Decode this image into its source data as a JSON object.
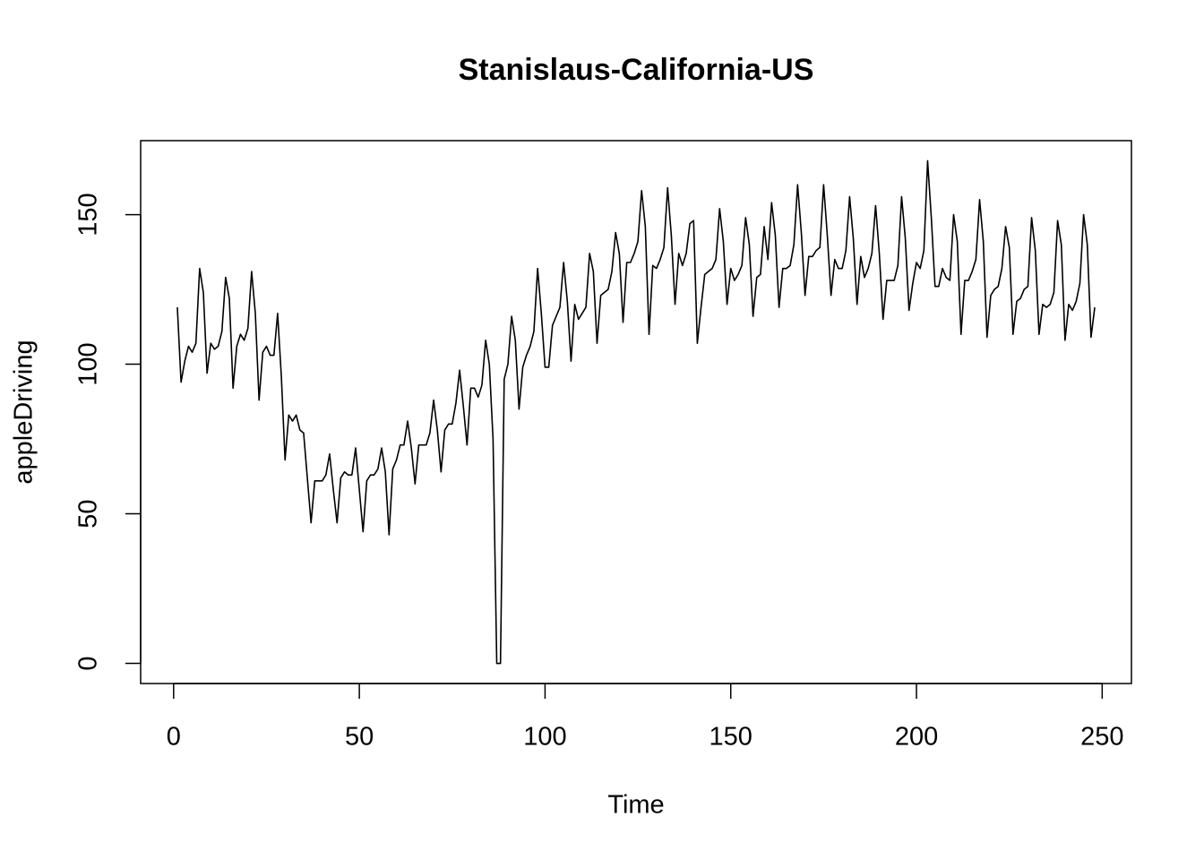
{
  "chart_data": {
    "type": "line",
    "title": "Stanislaus-California-US",
    "x_label": "Time",
    "y_label": "appleDriving",
    "xlim": [
      -8.88,
      257.88
    ],
    "ylim": [
      -6.72,
      174.72
    ],
    "xticks": [
      0,
      50,
      100,
      150,
      200,
      250
    ],
    "yticks": [
      0,
      50,
      100,
      150
    ],
    "series": [
      {
        "name": "appleDriving",
        "color": "#000000",
        "x": [
          1,
          2,
          3,
          4,
          5,
          6,
          7,
          8,
          9,
          10,
          11,
          12,
          13,
          14,
          15,
          16,
          17,
          18,
          19,
          20,
          21,
          22,
          23,
          24,
          25,
          26,
          27,
          28,
          29,
          30,
          31,
          32,
          33,
          34,
          35,
          36,
          37,
          38,
          39,
          40,
          41,
          42,
          43,
          44,
          45,
          46,
          47,
          48,
          49,
          50,
          51,
          52,
          53,
          54,
          55,
          56,
          57,
          58,
          59,
          60,
          61,
          62,
          63,
          64,
          65,
          66,
          67,
          68,
          69,
          70,
          71,
          72,
          73,
          74,
          75,
          76,
          77,
          78,
          79,
          80,
          81,
          82,
          83,
          84,
          85,
          86,
          87,
          88,
          89,
          90,
          91,
          92,
          93,
          94,
          95,
          96,
          97,
          98,
          99,
          100,
          101,
          102,
          103,
          104,
          105,
          106,
          107,
          108,
          109,
          110,
          111,
          112,
          113,
          114,
          115,
          116,
          117,
          118,
          119,
          120,
          121,
          122,
          123,
          124,
          125,
          126,
          127,
          128,
          129,
          130,
          131,
          132,
          133,
          134,
          135,
          136,
          137,
          138,
          139,
          140,
          141,
          142,
          143,
          144,
          145,
          146,
          147,
          148,
          149,
          150,
          151,
          152,
          153,
          154,
          155,
          156,
          157,
          158,
          159,
          160,
          161,
          162,
          163,
          164,
          165,
          166,
          167,
          168,
          169,
          170,
          171,
          172,
          173,
          174,
          175,
          176,
          177,
          178,
          179,
          180,
          181,
          182,
          183,
          184,
          185,
          186,
          187,
          188,
          189,
          190,
          191,
          192,
          193,
          194,
          195,
          196,
          197,
          198,
          199,
          200,
          201,
          202,
          203,
          204,
          205,
          206,
          207,
          208,
          209,
          210,
          211,
          212,
          213,
          214,
          215,
          216,
          217,
          218,
          219,
          220,
          221,
          222,
          223,
          224,
          225,
          226,
          227,
          228,
          229,
          230,
          231,
          232,
          233,
          234,
          235,
          236,
          237,
          238,
          239,
          240,
          241,
          242,
          243,
          244,
          245,
          246,
          247,
          248
        ],
        "values": [
          119,
          94,
          101,
          106,
          104,
          107,
          132,
          124,
          97,
          107,
          105,
          106,
          111,
          129,
          122,
          92,
          106,
          110,
          108,
          112,
          131,
          117,
          88,
          104,
          106,
          103,
          103,
          117,
          96,
          68,
          83,
          81,
          83,
          78,
          77,
          62,
          47,
          61,
          61,
          61,
          63,
          70,
          58,
          47,
          62,
          64,
          63,
          63,
          72,
          58,
          44,
          61,
          63,
          63,
          65,
          72,
          64,
          43,
          65,
          68,
          73,
          73,
          81,
          72,
          60,
          73,
          73,
          73,
          77,
          88,
          78,
          64,
          78,
          80,
          80,
          87,
          98,
          86,
          73,
          92,
          92,
          89,
          93,
          108,
          100,
          75,
          0,
          0,
          95,
          100,
          116,
          108,
          85,
          99,
          103,
          106,
          111,
          132,
          117,
          99,
          99,
          113,
          116,
          119,
          134,
          121,
          101,
          120,
          115,
          117,
          119,
          137,
          131,
          107,
          123,
          124,
          125,
          131,
          144,
          137,
          114,
          134,
          134,
          137,
          141,
          158,
          146,
          110,
          133,
          132,
          135,
          139,
          159,
          143,
          120,
          137,
          133,
          137,
          147,
          148,
          107,
          119,
          130,
          131,
          132,
          135,
          152,
          141,
          120,
          132,
          128,
          130,
          133,
          149,
          140,
          116,
          129,
          130,
          146,
          135,
          154,
          143,
          119,
          132,
          132,
          133,
          140,
          160,
          144,
          123,
          136,
          136,
          138,
          139,
          160,
          143,
          123,
          135,
          132,
          132,
          138,
          156,
          142,
          120,
          136,
          129,
          132,
          137,
          153,
          137,
          115,
          128,
          128,
          128,
          133,
          156,
          142,
          118,
          127,
          134,
          132,
          138,
          168,
          149,
          126,
          126,
          132,
          129,
          128,
          150,
          141,
          110,
          128,
          128,
          131,
          135,
          155,
          141,
          109,
          123,
          125,
          126,
          132,
          146,
          139,
          110,
          121,
          122,
          125,
          126,
          149,
          138,
          110,
          120,
          119,
          120,
          124,
          148,
          140,
          108,
          120,
          118,
          121,
          127,
          150,
          140,
          109,
          119
        ]
      }
    ]
  }
}
